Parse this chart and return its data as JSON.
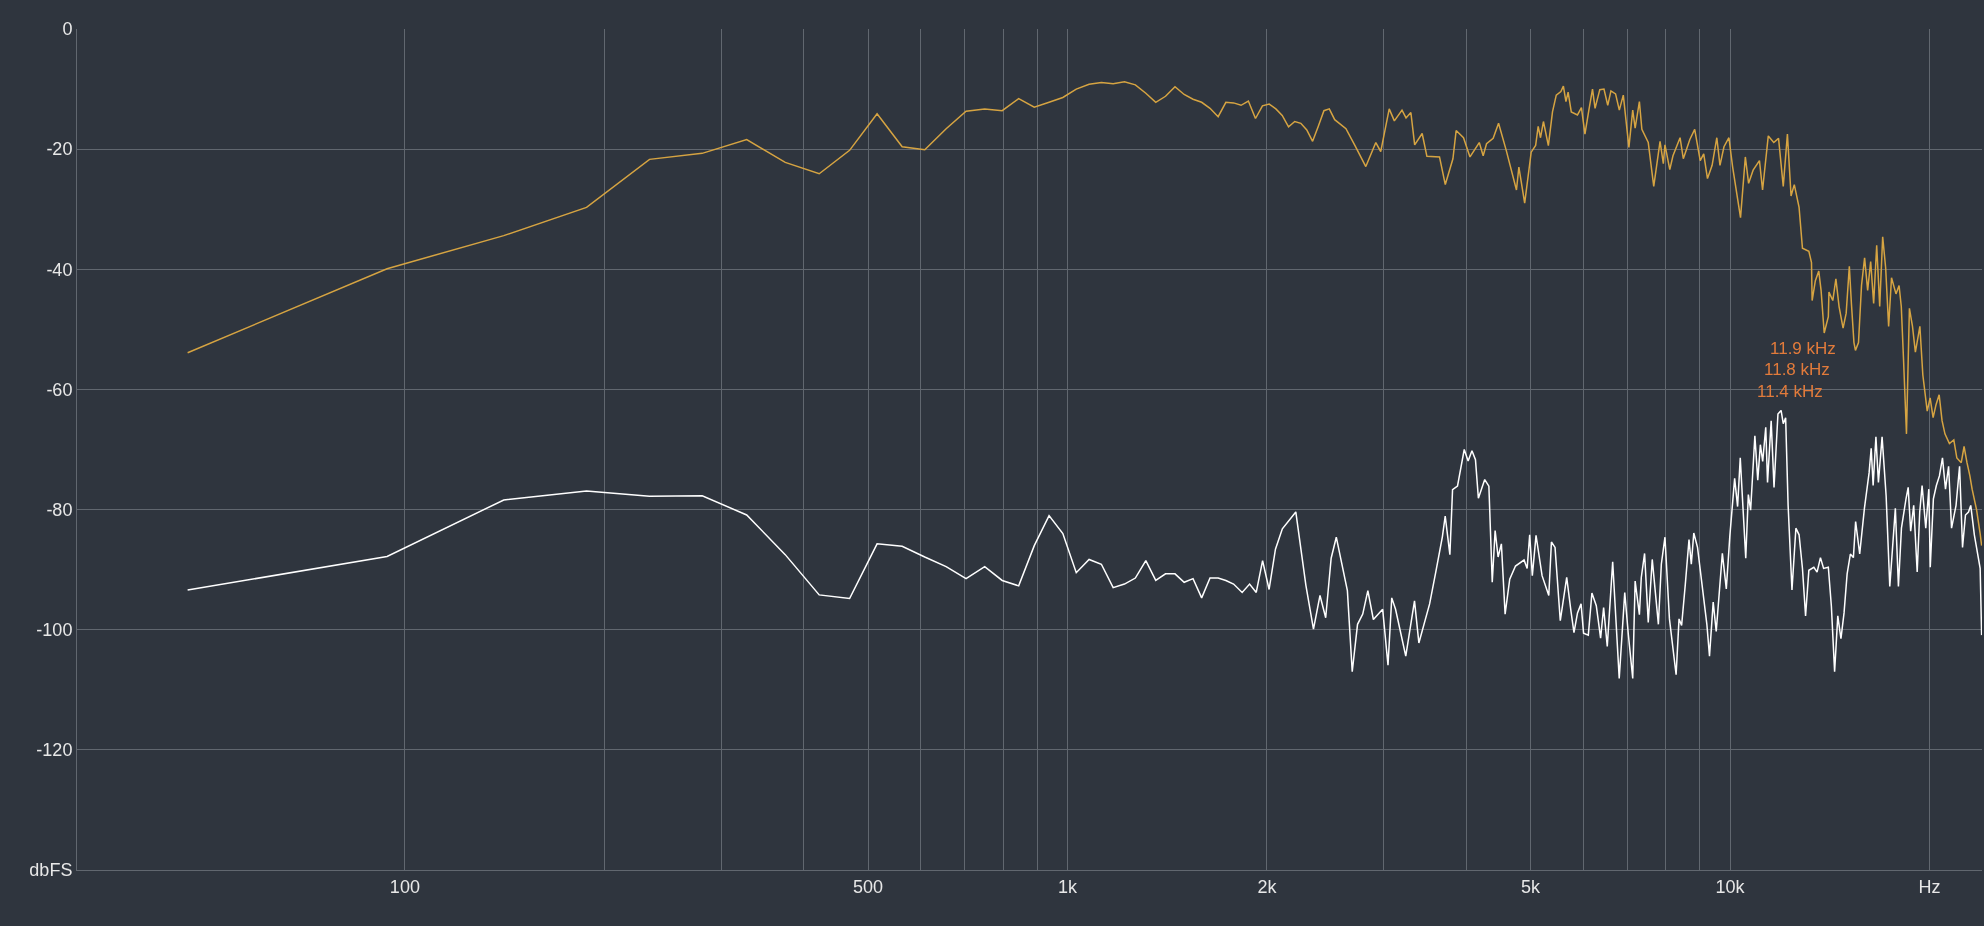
{
  "chart_data": {
    "type": "line",
    "log": "x",
    "grid": true,
    "xlim": [
      32,
      24000
    ],
    "ylim": [
      -140,
      0
    ],
    "xticks": [
      100,
      {
        "value": 200,
        "label": null
      },
      {
        "value": 300,
        "label": null
      },
      {
        "value": 400,
        "label": null
      },
      500,
      {
        "value": 600,
        "label": null
      },
      {
        "value": 700,
        "label": null
      },
      {
        "value": 800,
        "label": null
      },
      {
        "value": 900,
        "label": null
      },
      {
        "value": 1000,
        "label": "1k"
      },
      {
        "value": 2000,
        "label": "2k"
      },
      {
        "value": 3000,
        "label": null
      },
      {
        "value": 4000,
        "label": null
      },
      {
        "value": 5000,
        "label": "5k"
      },
      {
        "value": 6000,
        "label": null
      },
      {
        "value": 7000,
        "label": null
      },
      {
        "value": 8000,
        "label": null
      },
      {
        "value": 9000,
        "label": null
      },
      {
        "value": 10000,
        "label": "10k"
      },
      {
        "value": 20000,
        "label": "Hz"
      }
    ],
    "yticks": [
      0,
      -20,
      -40,
      -60,
      -80,
      -100,
      -120,
      {
        "value": -140,
        "label": "dbFS"
      }
    ],
    "annotations": [
      "11.9 kHz",
      "11.8 kHz",
      "11.4 kHz"
    ],
    "series": [
      {
        "color": "#d6a442",
        "x": [
          47,
          94,
          141,
          188,
          234,
          281,
          328,
          375,
          422,
          469,
          516,
          563,
          609,
          656,
          703,
          750,
          797,
          844,
          891,
          938,
          984,
          1031,
          1078,
          1125,
          1172,
          1219,
          1266,
          1313,
          1359,
          1406,
          1453,
          1500,
          1547,
          1594,
          1641,
          1688,
          1734,
          1781,
          1828,
          1875,
          1922,
          1969,
          2016,
          2063,
          2109,
          2156,
          2203,
          2250,
          2297,
          2344,
          2391,
          2438,
          2484,
          2531,
          2632,
          2716,
          2820,
          2920,
          2970,
          3059,
          3114,
          3198,
          3243,
          3298,
          3342,
          3430,
          3487,
          3643,
          3717,
          3817,
          3860,
          3960,
          4050,
          4183,
          4240,
          4290,
          4390,
          4473,
          4594,
          4760,
          4800,
          4898,
          5010,
          5088,
          5133,
          5175,
          5228,
          5318,
          5395,
          5466,
          5555,
          5603,
          5653,
          5696,
          5759,
          5884,
          5966,
          6039,
          6120,
          6200,
          6255,
          6359,
          6452,
          6537,
          6610,
          6717,
          6805,
          6900,
          7036,
          7130,
          7190,
          7297,
          7360,
          7525,
          7670,
          7840,
          7930,
          7975,
          8110,
          8200,
          8405,
          8500,
          8695,
          8843,
          9015,
          9125,
          9245,
          9395,
          9550,
          9655,
          9790,
          9960,
          10090,
          10370,
          10545,
          10665,
          10834,
          11075,
          11195,
          11420,
          11640,
          11835,
          12030,
          12205,
          12360,
          12500,
          12710,
          12860,
          13150,
          13270,
          13300,
          13450,
          13610,
          13720,
          13870,
          14070,
          14100,
          14290,
          14445,
          14605,
          14810,
          14970,
          15135,
          15245,
          15380,
          15460,
          15625,
          15790,
          15960,
          16130,
          16300,
          16470,
          16645,
          16820,
          16995,
          17170,
          17350,
          17525,
          17800,
          17990,
          18130,
          18270,
          18460,
          18650,
          18850,
          19040,
          19340,
          19540,
          19840,
          20040,
          20250,
          20460,
          20680,
          20890,
          21100,
          21430,
          21760,
          21990,
          22330,
          22550,
          22780,
          23010,
          23190,
          23550,
          23846,
          23970
        ],
        "values": [
          -53.9,
          -39.9,
          -34.4,
          -29.7,
          -21.7,
          -20.7,
          -18.4,
          -22.2,
          -24.1,
          -20.2,
          -14.1,
          -19.6,
          -20.1,
          -16.6,
          -13.7,
          -13.3,
          -13.6,
          -11.6,
          -13.0,
          -12.2,
          -11.4,
          -10.0,
          -9.2,
          -8.9,
          -9.1,
          -8.8,
          -9.3,
          -10.7,
          -12.2,
          -11.2,
          -9.6,
          -10.9,
          -11.7,
          -12.2,
          -13.2,
          -14.6,
          -12.2,
          -12.3,
          -12.7,
          -12.0,
          -14.9,
          -12.8,
          -12.5,
          -13.3,
          -14.4,
          -16.3,
          -15.4,
          -15.7,
          -16.8,
          -18.7,
          -16.2,
          -13.6,
          -13.3,
          -15.1,
          -16.6,
          -19.4,
          -22.9,
          -18.9,
          -20.4,
          -13.3,
          -15.3,
          -13.5,
          -14.8,
          -13.9,
          -19.3,
          -17.4,
          -21.2,
          -21.3,
          -25.9,
          -21.6,
          -16.9,
          -18.1,
          -21.3,
          -18.9,
          -21.1,
          -19.1,
          -18.2,
          -15.7,
          -20.2,
          -26.8,
          -23.0,
          -29.0,
          -20.5,
          -19.4,
          -16.2,
          -18.1,
          -15.4,
          -19.4,
          -13.8,
          -11.0,
          -10.4,
          -9.5,
          -12.1,
          -10.5,
          -13.8,
          -14.3,
          -13.1,
          -17.5,
          -13.6,
          -10.0,
          -13.2,
          -10.1,
          -10.0,
          -12.7,
          -10.3,
          -10.8,
          -13.5,
          -11.0,
          -19.7,
          -13.5,
          -16.5,
          -12.1,
          -16.7,
          -18.9,
          -26.2,
          -18.7,
          -22.4,
          -19.3,
          -23.4,
          -21.1,
          -18.1,
          -21.6,
          -18.4,
          -16.7,
          -21.9,
          -20.8,
          -24.9,
          -22.7,
          -18.1,
          -22.7,
          -19.6,
          -18.1,
          -23.0,
          -31.4,
          -21.3,
          -25.7,
          -23.5,
          -21.9,
          -26.8,
          -17.8,
          -18.9,
          -18.2,
          -26.2,
          -17.5,
          -27.8,
          -25.9,
          -29.7,
          -36.5,
          -37.0,
          -38.9,
          -45.2,
          -41.9,
          -40.3,
          -43.5,
          -50.6,
          -47.9,
          -43.8,
          -45.2,
          -41.6,
          -46.2,
          -49.8,
          -47.3,
          -39.5,
          -45.7,
          -52.2,
          -53.5,
          -52.2,
          -42.7,
          -38.1,
          -43.5,
          -38.7,
          -45.7,
          -36.0,
          -46.2,
          -34.6,
          -39.7,
          -49.5,
          -41.4,
          -44.1,
          -42.7,
          -46.2,
          -54.9,
          -67.4,
          -46.5,
          -49.5,
          -53.8,
          -49.5,
          -57.6,
          -63.6,
          -61.4,
          -64.7,
          -62.5,
          -60.9,
          -65.2,
          -67.4,
          -69.0,
          -68.4,
          -71.4,
          -72.2,
          -69.5,
          -72.2,
          -74.4,
          -76.6,
          -80.0,
          -84.0,
          -86.0
        ]
      },
      {
        "color": "#ffffff",
        "x": [
          47,
          94,
          141,
          188,
          234,
          281,
          328,
          375,
          422,
          469,
          516,
          563,
          609,
          656,
          703,
          750,
          797,
          844,
          891,
          938,
          984,
          1031,
          1078,
          1125,
          1172,
          1219,
          1266,
          1313,
          1359,
          1406,
          1453,
          1500,
          1547,
          1594,
          1641,
          1688,
          1734,
          1781,
          1835,
          1883,
          1927,
          1970,
          2015,
          2060,
          2110,
          2211,
          2290,
          2351,
          2405,
          2453,
          2500,
          2545,
          2645,
          2690,
          2740,
          2790,
          2840,
          2895,
          2990,
          3046,
          3086,
          3127,
          3240,
          3340,
          3391,
          3520,
          3596,
          3680,
          3716,
          3777,
          3812,
          3878,
          3970,
          4024,
          4078,
          4128,
          4170,
          4263,
          4325,
          4376,
          4420,
          4466,
          4517,
          4576,
          4650,
          4744,
          4887,
          4940,
          4984,
          5030,
          5095,
          5203,
          5326,
          5375,
          5443,
          5543,
          5668,
          5754,
          5813,
          5885,
          5958,
          6010,
          6110,
          6187,
          6282,
          6377,
          6444,
          6526,
          6650,
          6803,
          6935,
          7022,
          7130,
          7190,
          7297,
          7345,
          7430,
          7525,
          7630,
          7795,
          7875,
          7975,
          8100,
          8290,
          8375,
          8450,
          8560,
          8670,
          8740,
          8815,
          8930,
          9225,
          9310,
          9430,
          9530,
          9735,
          9870,
          9990,
          10160,
          10265,
          10360,
          10560,
          10655,
          10740,
          10900,
          11010,
          11110,
          11200,
          11320,
          11390,
          11535,
          11650,
          11810,
          11940,
          12030,
          12130,
          12235,
          12400,
          12570,
          12710,
          12860,
          13000,
          13150,
          13380,
          13530,
          13690,
          13840,
          14070,
          14220,
          14380,
          14540,
          14700,
          14860,
          15020,
          15190,
          15350,
          15470,
          15690,
          15950,
          16210,
          16330,
          16440,
          16600,
          16745,
          16960,
          17200,
          17420,
          17760,
          17950,
          18140,
          18430,
          18570,
          18730,
          18930,
          19160,
          19330,
          19490,
          19740,
          19950,
          20050,
          20270,
          20480,
          20700,
          20920,
          21140,
          21370,
          21590,
          21930,
          22200,
          22430,
          22660,
          22900,
          23080,
          23370,
          23846,
          23970
        ],
        "values": [
          -93.4,
          -87.8,
          -78.4,
          -76.9,
          -77.8,
          -77.7,
          -80.9,
          -87.5,
          -94.2,
          -94.8,
          -85.7,
          -86.1,
          -87.9,
          -89.5,
          -91.5,
          -89.5,
          -91.8,
          -92.7,
          -86.0,
          -81.0,
          -84.0,
          -90.5,
          -88.3,
          -89.1,
          -93.0,
          -92.4,
          -91.4,
          -88.5,
          -91.8,
          -90.7,
          -90.7,
          -92.1,
          -91.5,
          -94.7,
          -91.4,
          -91.4,
          -91.8,
          -92.4,
          -93.8,
          -92.4,
          -93.8,
          -88.5,
          -93.3,
          -86.6,
          -83.2,
          -80.4,
          -92.6,
          -99.9,
          -94.3,
          -98.0,
          -88.1,
          -84.6,
          -93.5,
          -107.0,
          -99.1,
          -97.4,
          -93.5,
          -98.3,
          -96.6,
          -105.9,
          -94.7,
          -96.6,
          -104.4,
          -95.2,
          -102.2,
          -95.7,
          -90.4,
          -84.5,
          -81.1,
          -87.5,
          -76.7,
          -76.1,
          -70.0,
          -71.9,
          -70.2,
          -71.7,
          -78.1,
          -75.0,
          -76.1,
          -92.1,
          -83.5,
          -87.9,
          -85.7,
          -97.4,
          -91.6,
          -89.4,
          -88.4,
          -89.8,
          -84.2,
          -91.0,
          -84.3,
          -91.0,
          -94.3,
          -85.4,
          -86.3,
          -98.5,
          -91.3,
          -97.0,
          -100.5,
          -97.2,
          -95.7,
          -100.6,
          -100.9,
          -93.9,
          -96.0,
          -101.4,
          -96.3,
          -102.8,
          -88.7,
          -108.1,
          -93.8,
          -100.8,
          -108.1,
          -91.9,
          -97.5,
          -91.3,
          -87.3,
          -98.8,
          -88.3,
          -99.1,
          -89.1,
          -84.6,
          -98.2,
          -107.5,
          -98.2,
          -99.3,
          -92.4,
          -85.0,
          -89.1,
          -83.9,
          -86.3,
          -99.1,
          -104.4,
          -95.4,
          -100.3,
          -87.3,
          -93.2,
          -84.5,
          -74.8,
          -79.5,
          -71.4,
          -88.1,
          -77.5,
          -80.1,
          -67.7,
          -75.1,
          -69.2,
          -72.0,
          -66.3,
          -75.5,
          -65.2,
          -76.3,
          -64.1,
          -63.5,
          -65.7,
          -64.7,
          -79.3,
          -93.4,
          -83.1,
          -84.2,
          -89.8,
          -97.7,
          -90.1,
          -89.6,
          -90.4,
          -88.0,
          -89.8,
          -89.6,
          -96.1,
          -107.0,
          -97.7,
          -101.5,
          -97.2,
          -90.7,
          -87.4,
          -88.0,
          -82.0,
          -87.4,
          -79.8,
          -73.9,
          -69.8,
          -76.0,
          -67.9,
          -75.5,
          -67.9,
          -77.7,
          -92.8,
          -79.8,
          -92.8,
          -83.1,
          -78.2,
          -76.3,
          -83.6,
          -79.3,
          -90.4,
          -80.4,
          -76.0,
          -83.1,
          -76.6,
          -89.6,
          -78.2,
          -76.0,
          -74.4,
          -71.4,
          -76.6,
          -72.8,
          -83.1,
          -79.3,
          -72.8,
          -86.3,
          -80.9,
          -80.4,
          -79.3,
          -84.2,
          -89.8,
          -100.9
        ]
      }
    ]
  }
}
